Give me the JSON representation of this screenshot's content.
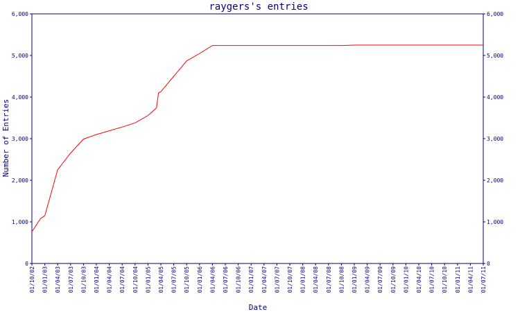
{
  "chart_data": {
    "type": "line",
    "title": "raygers's entries",
    "xlabel": "Date",
    "ylabel": "Number of Entries",
    "ylim": [
      0,
      6000
    ],
    "yticks": [
      0,
      1000,
      2000,
      3000,
      4000,
      5000,
      6000
    ],
    "ytick_labels": [
      "0",
      "1,000",
      "2,000",
      "3,000",
      "4,000",
      "5,000",
      "6,000"
    ],
    "right_axis": true,
    "grid": false,
    "xlim": [
      "2002-10-01",
      "2011-07-01"
    ],
    "x_tick_labels": [
      "01/10/02",
      "01/01/03",
      "01/04/03",
      "01/07/03",
      "01/10/03",
      "01/01/04",
      "01/04/04",
      "01/07/04",
      "01/10/04",
      "01/01/05",
      "01/04/05",
      "01/07/05",
      "01/10/05",
      "01/01/06",
      "01/04/06",
      "01/07/06",
      "01/10/06",
      "01/01/07",
      "01/04/07",
      "01/07/07",
      "01/10/07",
      "01/01/08",
      "01/04/08",
      "01/07/08",
      "01/10/08",
      "01/01/09",
      "01/04/09",
      "01/07/09",
      "01/10/09",
      "01/01/10",
      "01/04/10",
      "01/07/10",
      "01/10/10",
      "01/01/11",
      "01/04/11",
      "01/07/11"
    ],
    "colors": {
      "text": "#000080",
      "axis": "#000080",
      "line": "#ff0000",
      "background": "#ffffff"
    },
    "series": [
      {
        "x": [
          "2002-10-01",
          "2002-12-01",
          "2003-01-01",
          "2003-04-01",
          "2003-07-01",
          "2003-10-01",
          "2004-01-01",
          "2004-04-01",
          "2004-07-01",
          "2004-10-01",
          "2005-01-01",
          "2005-03-01",
          "2005-03-15",
          "2005-04-01",
          "2005-07-01",
          "2005-10-01",
          "2006-01-01",
          "2006-04-01",
          "2006-07-01",
          "2006-10-01",
          "2007-01-01",
          "2007-07-01",
          "2008-01-01",
          "2008-07-01",
          "2008-10-01",
          "2009-01-01",
          "2009-07-01",
          "2010-01-01",
          "2010-07-01",
          "2011-01-01",
          "2011-07-01"
        ],
        "values": [
          760,
          1080,
          1150,
          2250,
          2650,
          2990,
          3100,
          3190,
          3280,
          3380,
          3560,
          3740,
          4100,
          4130,
          4500,
          4870,
          5050,
          5240,
          5240,
          5240,
          5240,
          5240,
          5240,
          5240,
          5240,
          5250,
          5250,
          5250,
          5250,
          5250,
          5250
        ]
      }
    ]
  }
}
